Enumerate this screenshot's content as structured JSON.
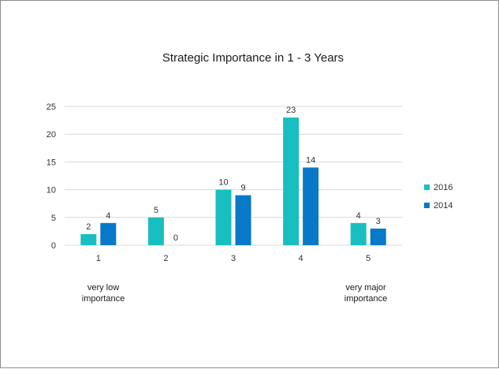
{
  "chart_data": {
    "type": "bar",
    "title": "Strategic Importance in 1 - 3 Years",
    "categories": [
      "1",
      "2",
      "3",
      "4",
      "5"
    ],
    "series": [
      {
        "name": "2016",
        "values": [
          2,
          5,
          10,
          23,
          4
        ],
        "color": "#17BFC0"
      },
      {
        "name": "2014",
        "values": [
          4,
          0,
          9,
          14,
          3
        ],
        "color": "#0878C8"
      }
    ],
    "ylim": [
      0,
      25
    ],
    "yticks": [
      0,
      5,
      10,
      15,
      20,
      25
    ],
    "grid": true,
    "legend_position": "right",
    "end_labels": {
      "left": [
        "very low",
        "importance"
      ],
      "right": [
        "very major",
        "importance"
      ]
    }
  }
}
